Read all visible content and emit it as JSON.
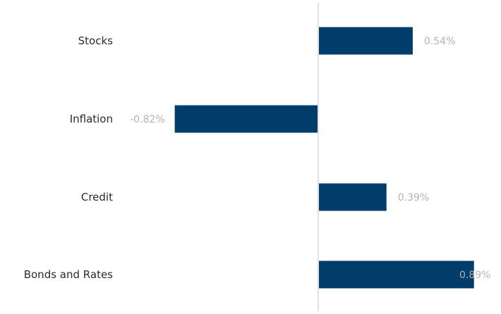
{
  "chart_data": {
    "type": "bar",
    "orientation": "horizontal",
    "categories": [
      "Stocks",
      "Inflation",
      "Credit",
      "Bonds and Rates"
    ],
    "values": [
      0.54,
      -0.82,
      0.39,
      0.89
    ],
    "value_labels": [
      "0.54%",
      "-0.82%",
      "0.39%",
      "0.89%"
    ],
    "xlim": [
      -0.82,
      0.89
    ],
    "unit": "%",
    "grid": false,
    "legend": "none",
    "colors": {
      "bar": "#003d6b",
      "zero_line": "#cfcfcf",
      "category_text": "#2b2b2b",
      "value_text": "#b3b3b3"
    }
  }
}
